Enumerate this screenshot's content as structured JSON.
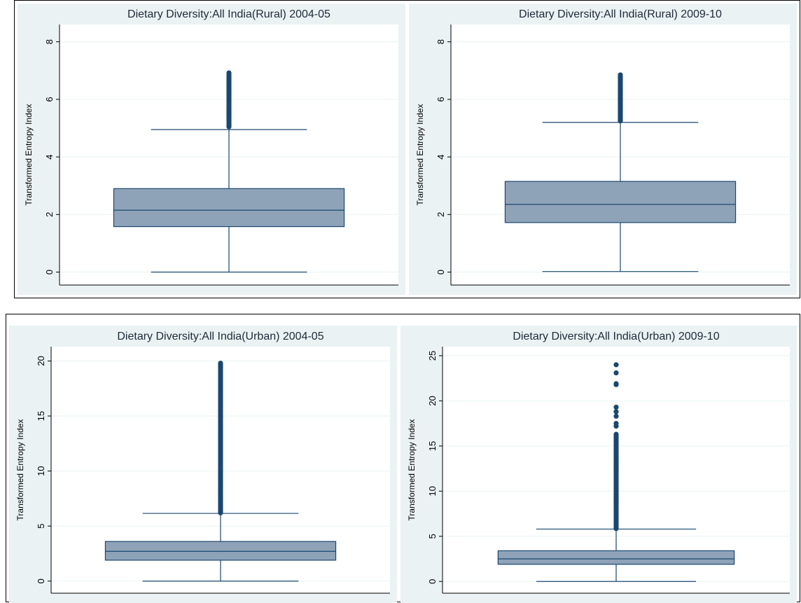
{
  "colors": {
    "panel_bg": "#eaf2f3",
    "plot_bg": "#ffffff",
    "box_fill": "#8fa3b8",
    "line": "#1a476f",
    "grid": "#eaf2f3",
    "title": "#1e2a3a"
  },
  "chart_data": [
    {
      "type": "box",
      "title": "Dietary Diversity:All India(Rural) 2004-05",
      "ylabel": "Transformed Entropy Index",
      "ylim": [
        -0.45,
        8.6
      ],
      "yticks": [
        0,
        2,
        4,
        6,
        8
      ],
      "ytick_labels": [
        "0",
        "2",
        "4",
        "6",
        "8"
      ],
      "grid": true,
      "box": {
        "whisker_low": 0,
        "q1": 1.58,
        "median": 2.15,
        "q3": 2.9,
        "whisker_high": 4.95
      },
      "outliers_range": [
        5.05,
        6.92
      ],
      "outliers_discrete": []
    },
    {
      "type": "box",
      "title": "Dietary Diversity:All India(Rural) 2009-10",
      "ylabel": "Transformed Entropy Index",
      "ylim": [
        -0.45,
        8.6
      ],
      "yticks": [
        0,
        2,
        4,
        6,
        8
      ],
      "ytick_labels": [
        "0",
        "2",
        "4",
        "6",
        "8"
      ],
      "grid": true,
      "box": {
        "whisker_low": 0.02,
        "q1": 1.72,
        "median": 2.35,
        "q3": 3.15,
        "whisker_high": 5.2
      },
      "outliers_range": [
        5.25,
        6.85
      ],
      "outliers_discrete": []
    },
    {
      "type": "box",
      "title": "Dietary Diversity:All India(Urban) 2004-05",
      "ylabel": "Transformed Entropy Index",
      "ylim": [
        -1.1,
        21.3
      ],
      "yticks": [
        0,
        5,
        10,
        15,
        20
      ],
      "ytick_labels": [
        "0",
        "5",
        "10",
        "15",
        "20"
      ],
      "grid": true,
      "box": {
        "whisker_low": 0,
        "q1": 1.9,
        "median": 2.7,
        "q3": 3.6,
        "whisker_high": 6.15
      },
      "outliers_range": [
        6.2,
        19.8
      ],
      "outliers_discrete": []
    },
    {
      "type": "box",
      "title": "Dietary Diversity:All India(Urban) 2009-10",
      "ylabel": "Transformed Entropy Index",
      "ylim": [
        -1.3,
        26.0
      ],
      "yticks": [
        0,
        5,
        10,
        15,
        20,
        25
      ],
      "ytick_labels": [
        "0",
        "5",
        "10",
        "15",
        "20",
        "25"
      ],
      "grid": true,
      "box": {
        "whisker_low": 0,
        "q1": 1.9,
        "median": 2.5,
        "q3": 3.4,
        "whisker_high": 5.8
      },
      "outliers_range": [
        5.85,
        16.3
      ],
      "outliers_discrete": [
        17.2,
        17.5,
        18.3,
        18.8,
        19.3,
        21.8,
        21.9,
        23.1,
        24.0
      ]
    }
  ]
}
